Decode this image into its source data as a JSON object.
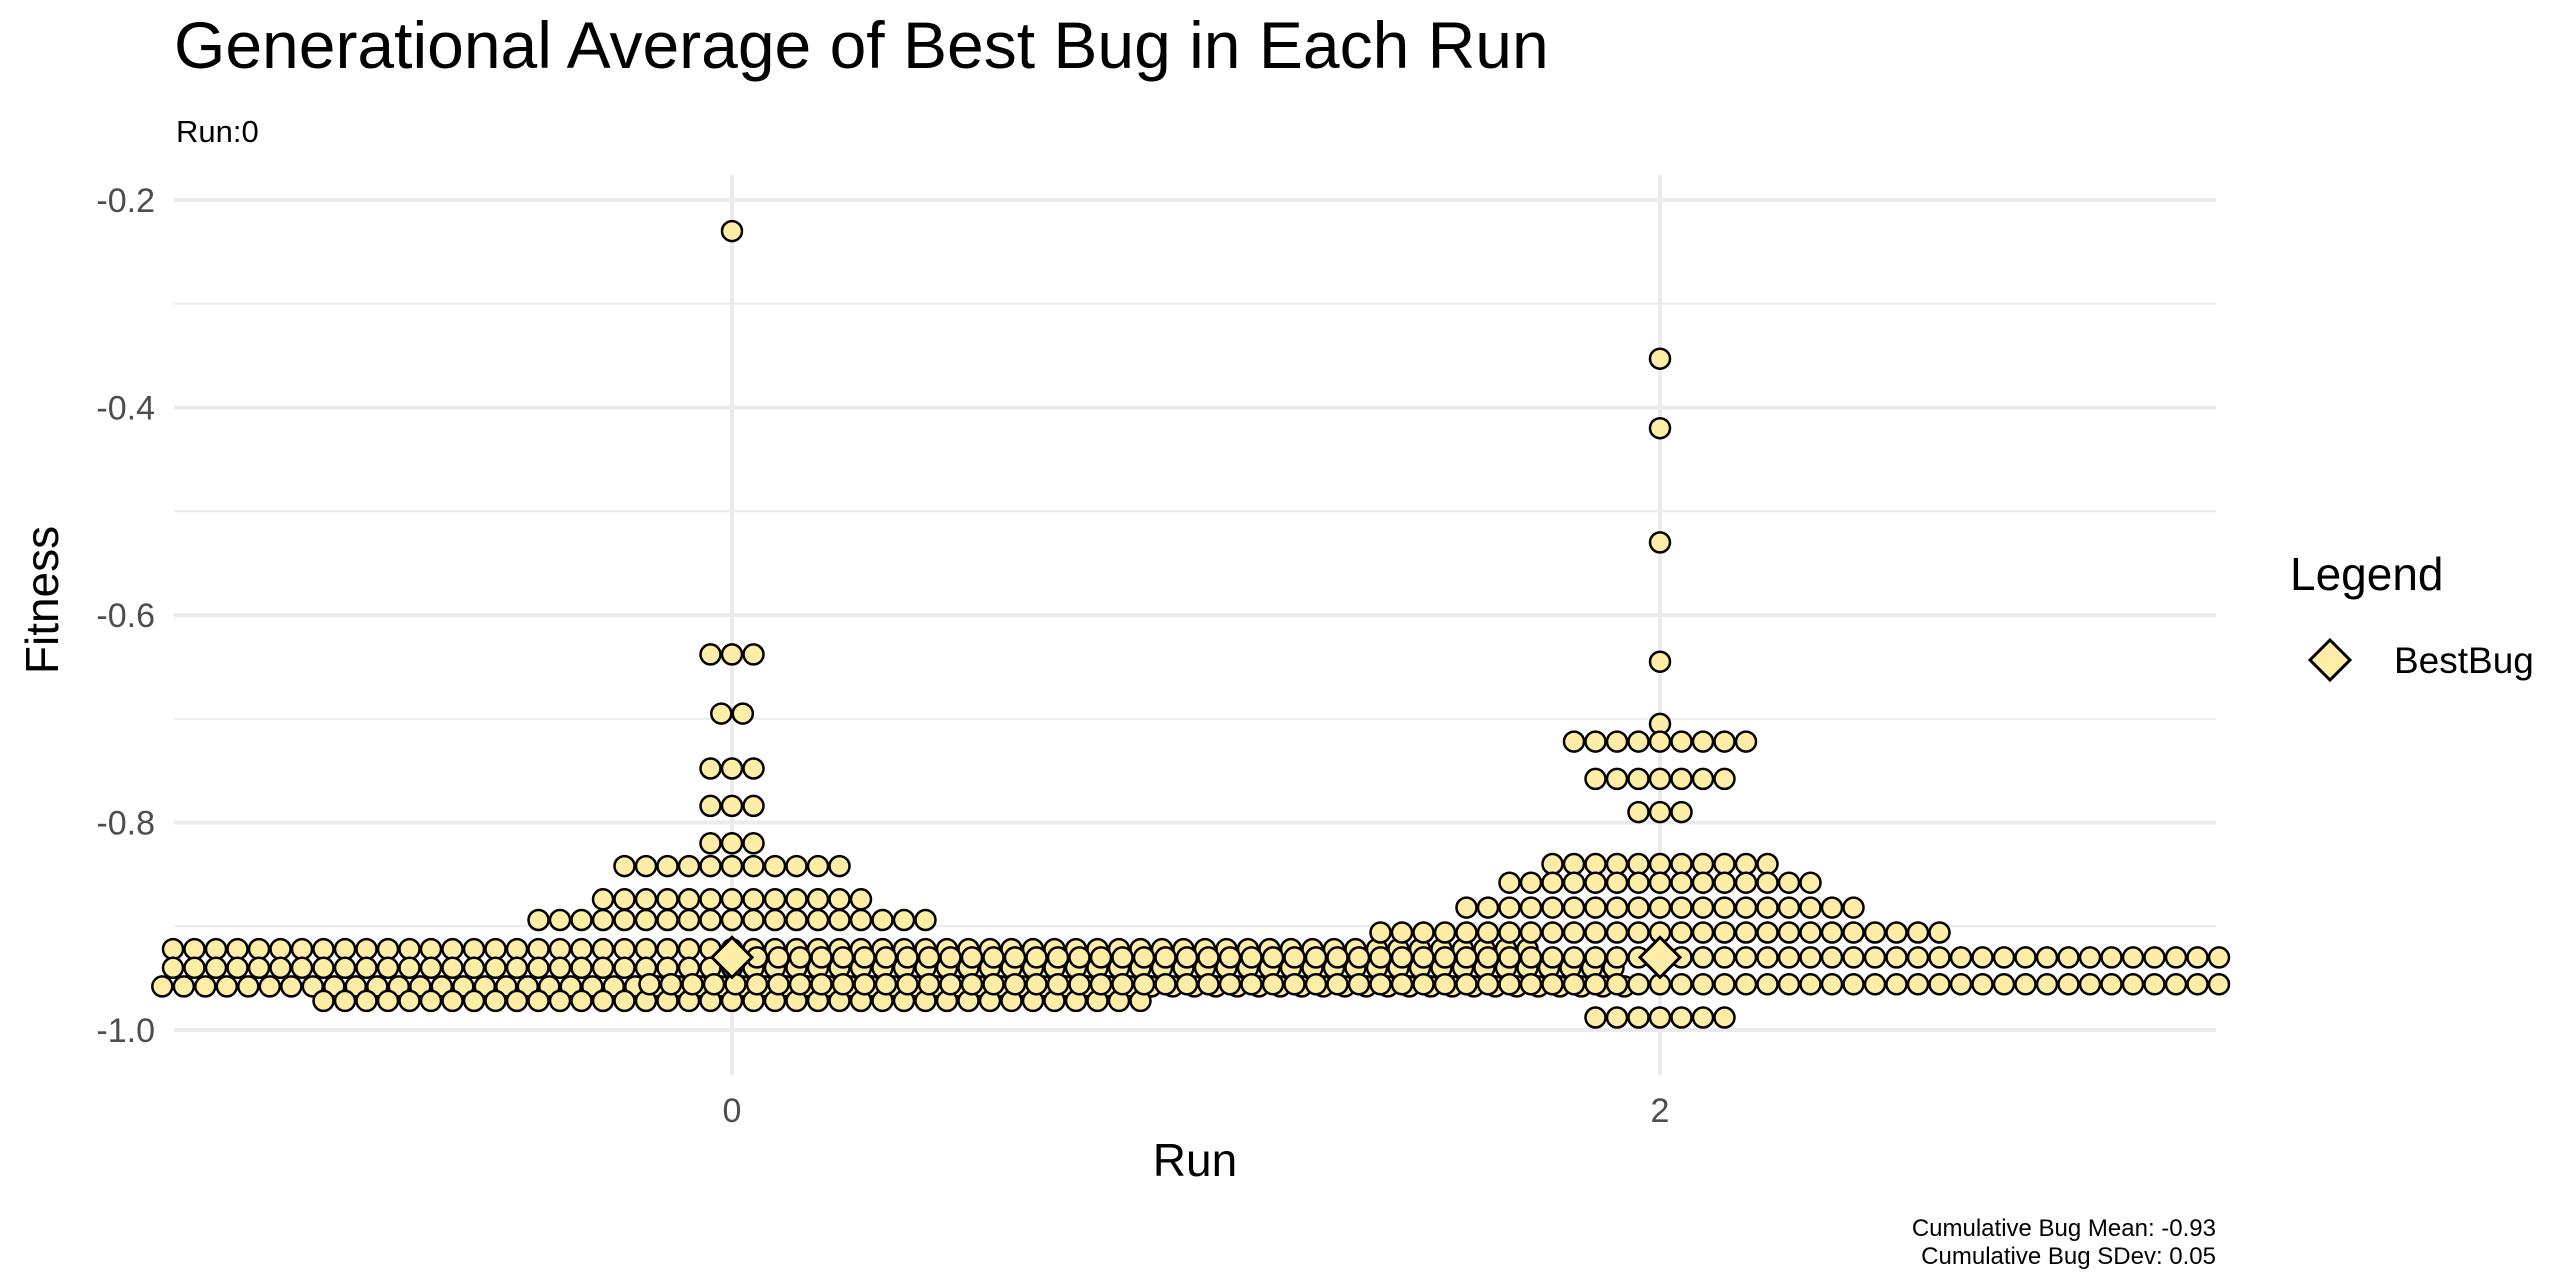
{
  "chart_data": {
    "type": "scatter",
    "subtype": "dotplot (beeswarm) with mean marker",
    "title": "Generational Average of Best Bug in Each Run",
    "subtitle": "Run:0",
    "xlabel": "Run",
    "ylabel": "Fitness",
    "x_ticks": [
      "0",
      "2"
    ],
    "y_ticks": [
      "-0.2",
      "-0.4",
      "-0.6",
      "-0.8",
      "-1.0"
    ],
    "ylim": [
      -1.0,
      -0.2
    ],
    "grid": true,
    "legend": {
      "title": "Legend",
      "position": "right",
      "entries": [
        {
          "label": "BestBug",
          "marker": "diamond"
        }
      ]
    },
    "caption_lines": [
      "Cumulative Bug Mean: -0.93",
      "Cumulative Bug SDev: 0.05"
    ],
    "colors": {
      "dot_fill": "#FEEDA6",
      "dot_stroke": "#000000",
      "grid": "#EBEBEB",
      "mean_dot": "#999999"
    },
    "series": [
      {
        "x": 0,
        "mean": -0.93,
        "binned_values": [
          {
            "fitness": -0.23,
            "count": 1
          },
          {
            "fitness": -0.638,
            "count": 3
          },
          {
            "fitness": -0.695,
            "count": 2
          },
          {
            "fitness": -0.748,
            "count": 3
          },
          {
            "fitness": -0.784,
            "count": 3
          },
          {
            "fitness": -0.82,
            "count": 3
          },
          {
            "fitness": -0.842,
            "count": 11
          },
          {
            "fitness": -0.874,
            "count": 13
          },
          {
            "fitness": -0.894,
            "count": 19
          },
          {
            "fitness": -0.922,
            "count": 75
          },
          {
            "fitness": -0.94,
            "count": 83
          },
          {
            "fitness": -0.958,
            "count": 84
          },
          {
            "fitness": -0.972,
            "count": 39
          }
        ]
      },
      {
        "x": 2,
        "mean": -0.93,
        "binned_values": [
          {
            "fitness": -0.353,
            "count": 1
          },
          {
            "fitness": -0.42,
            "count": 1
          },
          {
            "fitness": -0.53,
            "count": 1
          },
          {
            "fitness": -0.645,
            "count": 1
          },
          {
            "fitness": -0.705,
            "count": 1
          },
          {
            "fitness": -0.722,
            "count": 9
          },
          {
            "fitness": -0.758,
            "count": 7
          },
          {
            "fitness": -0.79,
            "count": 3
          },
          {
            "fitness": -0.84,
            "count": 11
          },
          {
            "fitness": -0.858,
            "count": 15
          },
          {
            "fitness": -0.882,
            "count": 19
          },
          {
            "fitness": -0.906,
            "count": 27
          },
          {
            "fitness": -0.93,
            "count": 85
          },
          {
            "fitness": -0.956,
            "count": 95
          },
          {
            "fitness": -0.988,
            "count": 7
          }
        ]
      }
    ]
  }
}
